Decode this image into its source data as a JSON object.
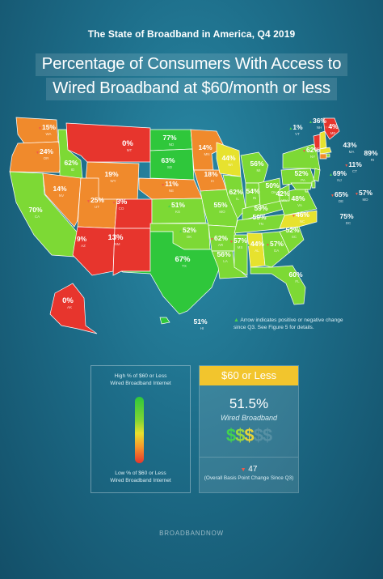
{
  "header": {
    "title": "The State of Broadband in America, Q4 2019",
    "subtitle_line1": "Percentage of Consumers With Access to",
    "subtitle_line2": "Wired Broadband at $60/month or less"
  },
  "map": {
    "colors": {
      "green": "#2fc73b",
      "lightgreen": "#7dd935",
      "yellow": "#e7e22e",
      "orange": "#f08a2c",
      "red": "#e7352d"
    },
    "states": [
      {
        "abbr": "WA",
        "value": "15%",
        "arrow": "down"
      },
      {
        "abbr": "OR",
        "value": "24%",
        "arrow": "down"
      },
      {
        "abbr": "CA",
        "value": "70%",
        "arrow": "none"
      },
      {
        "abbr": "ID",
        "value": "62%",
        "arrow": "none"
      },
      {
        "abbr": "NV",
        "value": "14%",
        "arrow": "none"
      },
      {
        "abbr": "MT",
        "value": "0%",
        "arrow": "none"
      },
      {
        "abbr": "WY",
        "value": "19%",
        "arrow": "none"
      },
      {
        "abbr": "UT",
        "value": "25%",
        "arrow": "down"
      },
      {
        "abbr": "AZ",
        "value": "9%",
        "arrow": "none"
      },
      {
        "abbr": "CO",
        "value": "3%",
        "arrow": "down"
      },
      {
        "abbr": "NM",
        "value": "13%",
        "arrow": "none"
      },
      {
        "abbr": "ND",
        "value": "77%",
        "arrow": "none"
      },
      {
        "abbr": "SD",
        "value": "63%",
        "arrow": "none"
      },
      {
        "abbr": "NE",
        "value": "11%",
        "arrow": "down"
      },
      {
        "abbr": "KS",
        "value": "51%",
        "arrow": "up"
      },
      {
        "abbr": "OK",
        "value": "52%",
        "arrow": "up"
      },
      {
        "abbr": "TX",
        "value": "67%",
        "arrow": "none"
      },
      {
        "abbr": "MN",
        "value": "14%",
        "arrow": "none"
      },
      {
        "abbr": "IA",
        "value": "18%",
        "arrow": "none"
      },
      {
        "abbr": "MO",
        "value": "55%",
        "arrow": "none"
      },
      {
        "abbr": "AR",
        "value": "62%",
        "arrow": "down"
      },
      {
        "abbr": "LA",
        "value": "56%",
        "arrow": "none"
      },
      {
        "abbr": "WI",
        "value": "44%",
        "arrow": "none"
      },
      {
        "abbr": "IL",
        "value": "62%",
        "arrow": "none"
      },
      {
        "abbr": "MS",
        "value": "57%",
        "arrow": "down"
      },
      {
        "abbr": "MI",
        "value": "56%",
        "arrow": "none"
      },
      {
        "abbr": "IN",
        "value": "54%",
        "arrow": "none"
      },
      {
        "abbr": "KY",
        "value": "59%",
        "arrow": "none"
      },
      {
        "abbr": "TN",
        "value": "59%",
        "arrow": "none"
      },
      {
        "abbr": "AL",
        "value": "44%",
        "arrow": "up"
      },
      {
        "abbr": "OH",
        "value": "50%",
        "arrow": "none"
      },
      {
        "abbr": "GA",
        "value": "57%",
        "arrow": "down"
      },
      {
        "abbr": "FL",
        "value": "60%",
        "arrow": "none"
      },
      {
        "abbr": "SC",
        "value": "52%",
        "arrow": "none"
      },
      {
        "abbr": "NC",
        "value": "46%",
        "arrow": "down"
      },
      {
        "abbr": "VA",
        "value": "48%",
        "arrow": "none"
      },
      {
        "abbr": "WV",
        "value": "42%",
        "arrow": "none"
      },
      {
        "abbr": "PA",
        "value": "52%",
        "arrow": "none"
      },
      {
        "abbr": "NY",
        "value": "62%",
        "arrow": "down"
      },
      {
        "abbr": "VT",
        "value": "1%",
        "arrow": "up"
      },
      {
        "abbr": "NH",
        "value": "36%",
        "arrow": "up"
      },
      {
        "abbr": "ME",
        "value": "4%",
        "arrow": "down"
      },
      {
        "abbr": "MA",
        "value": "43%",
        "arrow": "none"
      },
      {
        "abbr": "RI",
        "value": "89%",
        "arrow": "none"
      },
      {
        "abbr": "CT",
        "value": "11%",
        "arrow": "down"
      },
      {
        "abbr": "NJ",
        "value": "69%",
        "arrow": "up"
      },
      {
        "abbr": "DE",
        "value": "65%",
        "arrow": "down"
      },
      {
        "abbr": "MD",
        "value": "57%",
        "arrow": "down"
      },
      {
        "abbr": "DC",
        "value": "75%",
        "arrow": "none"
      },
      {
        "abbr": "AK",
        "value": "0%",
        "arrow": "none"
      },
      {
        "abbr": "HI",
        "value": "51%",
        "arrow": "none"
      }
    ]
  },
  "note": {
    "line1": "Arrow indicates positive or negative change",
    "line2": "since Q3.  See Figure 5 for details."
  },
  "legend": {
    "high_line1": "High % of $60 or Less",
    "high_line2": "Wired Broadband Internet",
    "low_line1": "Low % of $60 or Less",
    "low_line2": "Wired Broadband Internet"
  },
  "card": {
    "header": "$60 or Less",
    "value": "51.5%",
    "label": "Wired Broadband",
    "change": "47",
    "change_note": "(Overall Basis Point Change Since Q3)"
  },
  "brand": "BROADBANDNOW"
}
